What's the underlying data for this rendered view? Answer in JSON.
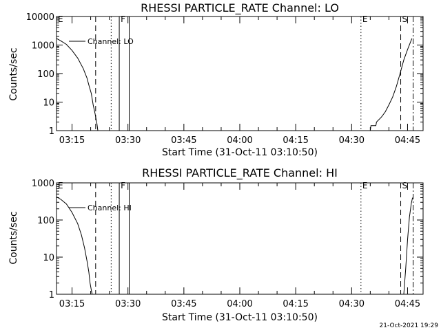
{
  "footer": "21-Oct-2021 19:29",
  "chart_data": [
    {
      "type": "line",
      "title": "RHESSI PARTICLE_RATE Channel: LO",
      "xlabel": "Start Time (31-Oct-11 03:10:50)",
      "ylabel": "Counts/sec",
      "yscale": "log",
      "xlim": [
        "03:10:50",
        "04:49:10"
      ],
      "ylim": [
        1,
        10000
      ],
      "xticks": [
        "03:15",
        "03:30",
        "03:45",
        "04:00",
        "04:15",
        "04:30",
        "04:45"
      ],
      "yticks": [
        "1",
        "10",
        "100",
        "1000",
        "10000"
      ],
      "legend": "Channel: LO",
      "legend_position": "top-left",
      "markers": [
        {
          "label": "E",
          "time": "03:10:50",
          "style": "dashed"
        },
        {
          "label": "",
          "time": "03:21:20",
          "style": "dashed"
        },
        {
          "label": "",
          "time": "03:25:30",
          "style": "dotted"
        },
        {
          "label": "F",
          "time": "03:27:40",
          "style": "solid"
        },
        {
          "label": "",
          "time": "03:30:20",
          "style": "solid"
        },
        {
          "label": "E",
          "time": "04:32:30",
          "style": "dotted"
        },
        {
          "label": "S",
          "time": "04:43:10",
          "style": "dashed"
        },
        {
          "label": "",
          "time": "04:46:30",
          "style": "dashdot"
        }
      ],
      "series": [
        {
          "name": "Channel: LO",
          "segments": [
            {
              "x": [
                "03:10:50",
                "03:12:00",
                "03:13:30",
                "03:15:00",
                "03:16:30",
                "03:18:00",
                "03:19:00",
                "03:19:30",
                "03:20:10",
                "03:20:40",
                "03:21:10",
                "03:21:40",
                "03:21:55"
              ],
              "y": [
                1700,
                1400,
                1050,
                650,
                350,
                150,
                70,
                40,
                20,
                8,
                4,
                1.8,
                1
              ]
            },
            {
              "x": [
                "04:35:00",
                "04:35:10",
                "04:36:30",
                "04:36:40",
                "04:38:00",
                "04:39:00",
                "04:40:00",
                "04:41:00",
                "04:42:00",
                "04:43:00",
                "04:44:00",
                "04:45:00",
                "04:46:10"
              ],
              "y": [
                1,
                1.5,
                1.5,
                2,
                3,
                4.5,
                8,
                15,
                35,
                100,
                300,
                700,
                1700
              ]
            }
          ]
        }
      ]
    },
    {
      "type": "line",
      "title": "RHESSI PARTICLE_RATE Channel: HI",
      "xlabel": "Start Time (31-Oct-11 03:10:50)",
      "ylabel": "Counts/sec",
      "yscale": "log",
      "xlim": [
        "03:10:50",
        "04:49:10"
      ],
      "ylim": [
        1,
        1000
      ],
      "xticks": [
        "03:15",
        "03:30",
        "03:45",
        "04:00",
        "04:15",
        "04:30",
        "04:45"
      ],
      "yticks": [
        "1",
        "10",
        "100",
        "1000"
      ],
      "legend": "Channel: HI",
      "legend_position": "top-left",
      "markers": [
        {
          "label": "E",
          "time": "03:10:50",
          "style": "dashed"
        },
        {
          "label": "",
          "time": "03:21:20",
          "style": "dashed"
        },
        {
          "label": "",
          "time": "03:25:30",
          "style": "dotted"
        },
        {
          "label": "F",
          "time": "03:27:40",
          "style": "solid"
        },
        {
          "label": "",
          "time": "03:30:20",
          "style": "solid"
        },
        {
          "label": "E",
          "time": "04:32:30",
          "style": "dotted"
        },
        {
          "label": "S",
          "time": "04:43:10",
          "style": "dashed"
        },
        {
          "label": "",
          "time": "04:46:30",
          "style": "dashdot"
        }
      ],
      "series": [
        {
          "name": "Channel: HI",
          "segments": [
            {
              "x": [
                "03:10:50",
                "03:12:00",
                "03:13:30",
                "03:15:00",
                "03:16:30",
                "03:17:30",
                "03:18:20",
                "03:19:00",
                "03:19:30",
                "03:19:50",
                "03:20:10",
                "03:20:25"
              ],
              "y": [
                420,
                360,
                270,
                160,
                80,
                40,
                18,
                8,
                4,
                2,
                1.3,
                1
              ]
            },
            {
              "x": [
                "04:44:00",
                "04:44:30",
                "04:45:00",
                "04:45:30",
                "04:46:00",
                "04:46:20"
              ],
              "y": [
                1,
                5,
                30,
                120,
                280,
                400
              ]
            }
          ]
        }
      ]
    }
  ]
}
